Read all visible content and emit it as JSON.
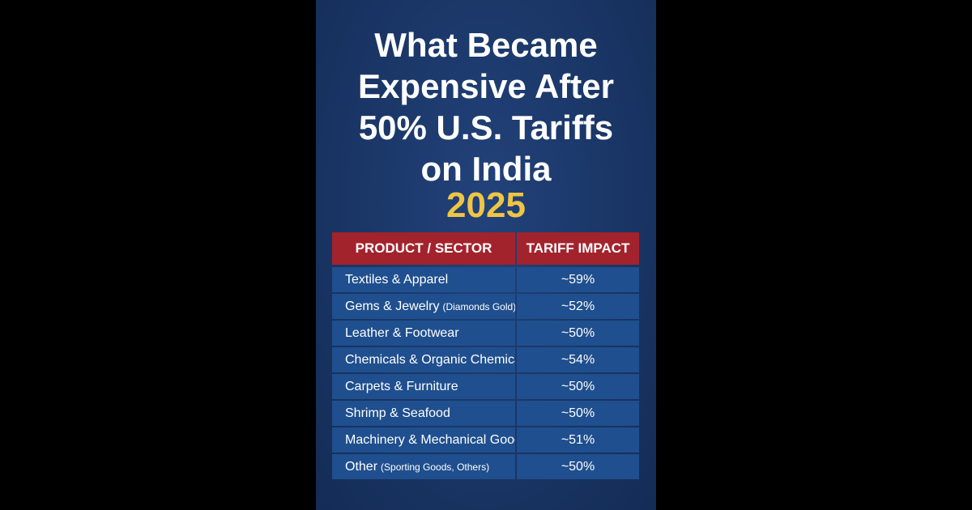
{
  "title": {
    "lines": [
      "What Became",
      "Expensive After",
      "50% U.S. Tariffs",
      "on India"
    ],
    "year": "2025"
  },
  "table": {
    "headers": [
      "PRODUCT / SECTOR",
      "TARIFF IMPACT"
    ],
    "rows": [
      {
        "product": "Textiles & Apparel",
        "note": "",
        "impact": "~59%"
      },
      {
        "product": "Gems & Jewelry",
        "note": "(Diamonds Gold)",
        "impact": "~52%"
      },
      {
        "product": "Leather & Footwear",
        "note": "",
        "impact": "~50%"
      },
      {
        "product": "Chemicals & Organic Chemicals",
        "note": "",
        "impact": "~54%"
      },
      {
        "product": "Carpets & Furniture",
        "note": "",
        "impact": "~50%"
      },
      {
        "product": "Shrimp & Seafood",
        "note": "",
        "impact": "~50%"
      },
      {
        "product": "Machinery & Mechanical Goods",
        "note": "",
        "impact": "~51%"
      },
      {
        "product": "Other",
        "note": "(Sporting Goods, Others)",
        "impact": "~50%"
      }
    ]
  },
  "colors": {
    "panel": "#1a3666",
    "header_red": "#a3232d",
    "cell_blue": "#1f4f8e",
    "year_gold": "#efc545",
    "text": "#ffffff"
  }
}
